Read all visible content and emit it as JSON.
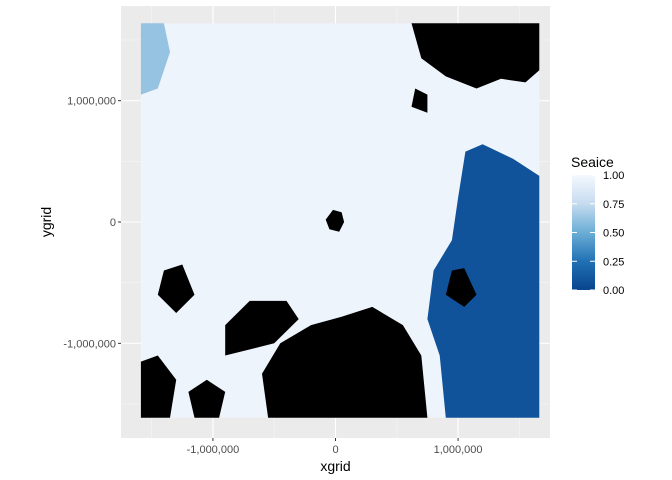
{
  "chart_data": {
    "type": "heatmap",
    "title": "",
    "xlabel": "xgrid",
    "ylabel": "ygrid",
    "xlim": [
      -1750000,
      1750000
    ],
    "ylim": [
      -1780000,
      1780000
    ],
    "x_ticks": [
      {
        "value": -1000000,
        "label": "-1,000,000"
      },
      {
        "value": 0,
        "label": "0"
      },
      {
        "value": 1000000,
        "label": "1,000,000"
      }
    ],
    "y_ticks": [
      {
        "value": -1000000,
        "label": "-1,000,000"
      },
      {
        "value": 0,
        "label": "0"
      },
      {
        "value": 1000000,
        "label": "1,000,000"
      }
    ],
    "fill_variable": "Seaice",
    "fill_range": [
      0,
      1
    ],
    "legend": {
      "title": "Seaice",
      "placement": "right",
      "ticks": [
        {
          "value": 1.0,
          "label": "1.00"
        },
        {
          "value": 0.75,
          "label": "0.75"
        },
        {
          "value": 0.5,
          "label": "0.50"
        },
        {
          "value": 0.25,
          "label": "0.25"
        },
        {
          "value": 0.0,
          "label": "0.00"
        }
      ],
      "colors": {
        "low": "#08458E",
        "mid": "#4292C6",
        "high": "#F4F9FE"
      }
    },
    "panel_background": "#EBEBEB",
    "grid": true,
    "na_color": "#000000",
    "data_extent": {
      "x": [
        -1587500,
        1662500
      ],
      "y": [
        -1612500,
        1637500
      ]
    },
    "field": {
      "background_value": 0.97,
      "low_ice_regions": [
        {
          "name": "north-atlantic",
          "polygon": [
            [
              1060000,
              580000
            ],
            [
              1200000,
              640000
            ],
            [
              1450000,
              520000
            ],
            [
              1662500,
              380000
            ],
            [
              1662500,
              -1612500
            ],
            [
              900000,
              -1612500
            ],
            [
              850000,
              -1100000
            ],
            [
              750000,
              -800000
            ],
            [
              800000,
              -400000
            ],
            [
              950000,
              -150000
            ],
            [
              1000000,
              200000
            ]
          ],
          "value": 0.08
        },
        {
          "name": "upper-left-bay",
          "polygon": [
            [
              -1587500,
              1637500
            ],
            [
              -1400000,
              1637500
            ],
            [
              -1350000,
              1400000
            ],
            [
              -1450000,
              1100000
            ],
            [
              -1587500,
              1050000
            ]
          ],
          "value": 0.45
        }
      ],
      "land_regions": [
        {
          "name": "greenland",
          "polygon": [
            [
              620000,
              1637500
            ],
            [
              1662500,
              1637500
            ],
            [
              1662500,
              1250000
            ],
            [
              1550000,
              1150000
            ],
            [
              1350000,
              1180000
            ],
            [
              1150000,
              1100000
            ],
            [
              900000,
              1200000
            ],
            [
              700000,
              1350000
            ]
          ]
        },
        {
          "name": "siberia",
          "polygon": [
            [
              -550000,
              -1612500
            ],
            [
              750000,
              -1612500
            ],
            [
              700000,
              -1100000
            ],
            [
              550000,
              -850000
            ],
            [
              300000,
              -700000
            ],
            [
              50000,
              -780000
            ],
            [
              -200000,
              -850000
            ],
            [
              -450000,
              -1000000
            ],
            [
              -600000,
              -1250000
            ]
          ]
        },
        {
          "name": "canadian-archipelago-1",
          "polygon": [
            [
              -1587500,
              -1612500
            ],
            [
              -1350000,
              -1612500
            ],
            [
              -1300000,
              -1300000
            ],
            [
              -1450000,
              -1100000
            ],
            [
              -1587500,
              -1150000
            ]
          ]
        },
        {
          "name": "canadian-archipelago-2",
          "polygon": [
            [
              -1150000,
              -1612500
            ],
            [
              -950000,
              -1612500
            ],
            [
              -900000,
              -1400000
            ],
            [
              -1050000,
              -1300000
            ],
            [
              -1200000,
              -1400000
            ]
          ]
        },
        {
          "name": "canadian-archipelago-3",
          "polygon": [
            [
              -900000,
              -1100000
            ],
            [
              -500000,
              -1000000
            ],
            [
              -300000,
              -800000
            ],
            [
              -400000,
              -650000
            ],
            [
              -700000,
              -650000
            ],
            [
              -900000,
              -850000
            ]
          ]
        },
        {
          "name": "canadian-archipelago-4",
          "polygon": [
            [
              -1400000,
              -400000
            ],
            [
              -1250000,
              -350000
            ],
            [
              -1150000,
              -600000
            ],
            [
              -1300000,
              -750000
            ],
            [
              -1450000,
              -600000
            ]
          ]
        },
        {
          "name": "north-pole-island",
          "polygon": [
            [
              -20000,
              100000
            ],
            [
              50000,
              80000
            ],
            [
              70000,
              0
            ],
            [
              30000,
              -80000
            ],
            [
              -50000,
              -60000
            ],
            [
              -80000,
              20000
            ]
          ]
        },
        {
          "name": "svalbard-scandinavia",
          "polygon": [
            [
              950000,
              -400000
            ],
            [
              1050000,
              -380000
            ],
            [
              1150000,
              -600000
            ],
            [
              1050000,
              -700000
            ],
            [
              900000,
              -600000
            ]
          ]
        },
        {
          "name": "franz-josef",
          "polygon": [
            [
              650000,
              1100000
            ],
            [
              750000,
              1050000
            ],
            [
              750000,
              900000
            ],
            [
              620000,
              950000
            ]
          ]
        }
      ]
    }
  }
}
